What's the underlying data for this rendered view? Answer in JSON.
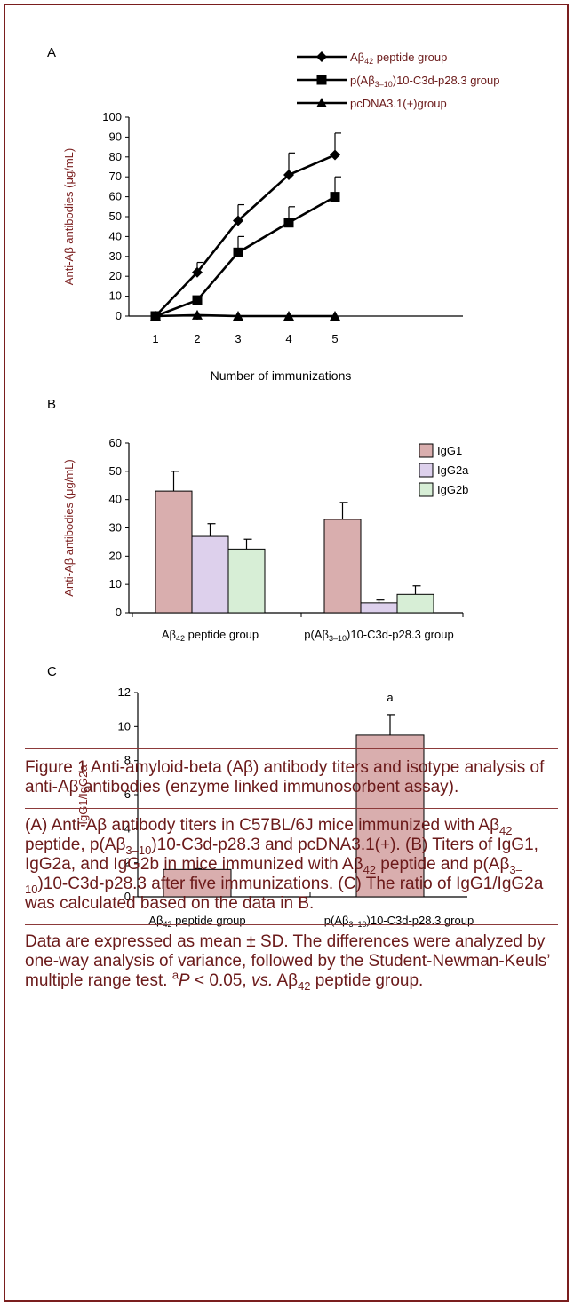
{
  "colors": {
    "frame": "#7a1e1e",
    "caption_text": "#6b1a1a",
    "axis_label_text": "#7a1e1e",
    "igg1": "#d9aeae",
    "igg2a": "#ddd0ec",
    "igg2b": "#d7eed6",
    "line": "#000000"
  },
  "chart_data": [
    {
      "panel": "A",
      "type": "line",
      "xlabel": "Number of immunizations",
      "ylabel": "Anti-Aβ antibodies (μg/mL)",
      "x": [
        1,
        2,
        3,
        4,
        5
      ],
      "ylim": [
        0,
        100
      ],
      "yticks": [
        0,
        10,
        20,
        30,
        40,
        50,
        60,
        70,
        80,
        90,
        100
      ],
      "legend": {
        "placement": "top-right"
      },
      "series": [
        {
          "name": "Aβ42 peptide group",
          "label_main": "Aβ",
          "label_sub": "42",
          "label_tail": " peptide group",
          "marker": "diamond",
          "values": [
            0,
            22,
            48,
            71,
            81
          ],
          "errors": [
            0,
            5,
            8,
            11,
            11
          ]
        },
        {
          "name": "p(Aβ3–10)10-C3d-p28.3 group",
          "label_main": "p(Aβ",
          "label_sub": "3–10",
          "label_tail": ")10-C3d-p28.3 group",
          "marker": "square",
          "values": [
            0,
            8,
            32,
            47,
            60
          ],
          "errors": [
            0,
            0,
            8,
            8,
            10
          ]
        },
        {
          "name": "pcDNA3.1(+)group",
          "label_main": "pcDNA3.1(+)group",
          "label_sub": "",
          "label_tail": "",
          "marker": "triangle",
          "values": [
            0,
            0.5,
            0,
            0,
            0
          ],
          "errors": [
            0,
            0,
            0,
            0,
            0
          ]
        }
      ]
    },
    {
      "panel": "B",
      "type": "bar",
      "ylabel": "Anti-Aβ antibodies (μg/mL)",
      "ylim": [
        0,
        60
      ],
      "yticks": [
        0,
        10,
        20,
        30,
        40,
        50,
        60
      ],
      "legend": {
        "placement": "top-right"
      },
      "categories": [
        {
          "main": "Aβ",
          "sub": "42",
          "tail": " peptide group"
        },
        {
          "main": "p(Aβ",
          "sub": "3–10",
          "tail": ")10-C3d-p28.3 group"
        }
      ],
      "series": [
        {
          "name": "IgG1",
          "values": [
            43,
            33
          ],
          "errors": [
            7,
            6
          ]
        },
        {
          "name": "IgG2a",
          "values": [
            27,
            3.5
          ],
          "errors": [
            4.5,
            1
          ]
        },
        {
          "name": "IgG2b",
          "values": [
            22.5,
            6.5
          ],
          "errors": [
            3.5,
            3
          ]
        }
      ]
    },
    {
      "panel": "C",
      "type": "bar",
      "ylabel": "IgG1/IgG2a",
      "ylim": [
        0,
        12
      ],
      "yticks": [
        0,
        2,
        4,
        6,
        8,
        10,
        12
      ],
      "categories": [
        {
          "main": "Aβ",
          "sub": "42",
          "tail": " peptide group"
        },
        {
          "main": "p(Aβ",
          "sub": "3–10",
          "tail": ")10-C3d-p28.3 group"
        }
      ],
      "values": [
        1.6,
        9.5
      ],
      "errors": [
        0.05,
        1.2
      ],
      "annotations": [
        "",
        "a"
      ]
    }
  ],
  "caption": {
    "title": "Figure 1    Anti-amyloid-beta (Aβ) antibody titers and isotype analysis of anti-Aβ antibodies (enzyme linked immunosorbent assay).",
    "p1": [
      {
        "t": "(A) Anti-Aβ antibody titers in C57BL/6J mice immunized with Aβ"
      },
      {
        "t": "42",
        "sub": true
      },
      {
        "t": " peptide, p(Aβ"
      },
      {
        "t": "3–10",
        "sub": true
      },
      {
        "t": ")10-C3d-p28.3 and pcDNA3.1(+). (B) Titers of IgG1, IgG2a, and IgG2b in mice immunized with Aβ"
      },
      {
        "t": "42",
        "sub": true
      },
      {
        "t": " peptide and p(Aβ"
      },
      {
        "t": "3–10",
        "sub": true
      },
      {
        "t": ")10-C3d-p28.3 after five immunizations. (C) The ratio of IgG1/IgG2a was calculated based on the data in B."
      }
    ],
    "p2": [
      {
        "t": "Data are expressed as mean ± SD. The differences were analyzed by one-way analysis of variance, followed by the Student-Newman-Keuls’ multiple range test. "
      },
      {
        "t": "a",
        "sup": true
      },
      {
        "t": "P",
        "i": true
      },
      {
        "t": " < 0.05, "
      },
      {
        "t": "vs.",
        "i": true
      },
      {
        "t": " Aβ"
      },
      {
        "t": "42",
        "sub": true
      },
      {
        "t": " peptide group."
      }
    ]
  },
  "panel_labels": [
    "A",
    "B",
    "C"
  ]
}
